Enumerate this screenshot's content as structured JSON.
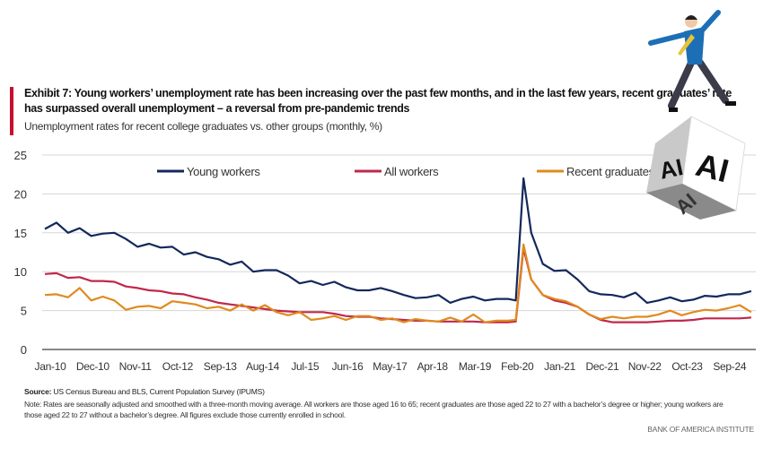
{
  "header": {
    "title": "Exhibit 7: Young workers’ unemployment rate has been increasing over the past few months, and in the last few years, recent graduates’ rate has surpassed overall unemployment – a reversal from pre-pandemic trends",
    "subtitle": "Unemployment rates for recent college graduates vs. other groups (monthly, %)"
  },
  "footer": {
    "source_label": "Source:",
    "source_text": " US Census Bureau and BLS, Current Population Survey (IPUMS)",
    "note": "Note: Rates are seasonally adjusted and smoothed with a three-month moving average. All workers are those aged 16 to 65; recent graduates are those aged 22 to 27 with a bachelor’s degree or higher; young workers are those aged 22 to 27 without a bachelor’s degree. All figures exclude those currently enrolled in school.",
    "brand": "BANK OF AMERICA INSTITUTE"
  },
  "illustration": {
    "cube_text": "AI"
  },
  "chart_data": {
    "type": "line",
    "title": "",
    "xlabel": "",
    "ylabel": "",
    "ylim": [
      0,
      25
    ],
    "yticks": [
      0,
      5,
      10,
      15,
      20,
      25
    ],
    "xticks": [
      "Jan-10",
      "Dec-10",
      "Nov-11",
      "Oct-12",
      "Sep-13",
      "Aug-14",
      "Jul-15",
      "Jun-16",
      "May-17",
      "Apr-18",
      "Mar-19",
      "Feb-20",
      "Jan-21",
      "Dec-21",
      "Nov-22",
      "Oct-23",
      "Sep-24"
    ],
    "grid": "horizontal",
    "legend": "top",
    "x": [
      "2010-01",
      "2010-04",
      "2010-07",
      "2010-10",
      "2011-01",
      "2011-04",
      "2011-07",
      "2011-10",
      "2012-01",
      "2012-04",
      "2012-07",
      "2012-10",
      "2013-01",
      "2013-04",
      "2013-07",
      "2013-10",
      "2014-01",
      "2014-04",
      "2014-07",
      "2014-10",
      "2015-01",
      "2015-04",
      "2015-07",
      "2015-10",
      "2016-01",
      "2016-04",
      "2016-07",
      "2016-10",
      "2017-01",
      "2017-04",
      "2017-07",
      "2017-10",
      "2018-01",
      "2018-04",
      "2018-07",
      "2018-10",
      "2019-01",
      "2019-04",
      "2019-07",
      "2019-10",
      "2020-01",
      "2020-03",
      "2020-05",
      "2020-07",
      "2020-10",
      "2021-01",
      "2021-04",
      "2021-07",
      "2021-10",
      "2022-01",
      "2022-04",
      "2022-07",
      "2022-10",
      "2023-01",
      "2023-04",
      "2023-07",
      "2023-10",
      "2024-01",
      "2024-04",
      "2024-07",
      "2024-10",
      "2025-01",
      "2025-04"
    ],
    "series": [
      {
        "name": "Young workers",
        "color": "#13285c",
        "values": [
          15.5,
          16.3,
          15.0,
          15.6,
          14.6,
          14.9,
          15.0,
          14.2,
          13.2,
          13.6,
          13.1,
          13.2,
          12.2,
          12.5,
          11.9,
          11.6,
          10.9,
          11.3,
          10.0,
          10.2,
          10.2,
          9.5,
          8.5,
          8.8,
          8.3,
          8.7,
          8.0,
          7.6,
          7.6,
          7.9,
          7.5,
          7.0,
          6.6,
          6.7,
          7.0,
          6.0,
          6.5,
          6.8,
          6.3,
          6.5,
          6.5,
          6.3,
          22.0,
          15.0,
          11.0,
          10.1,
          10.2,
          9.0,
          7.5,
          7.1,
          7.0,
          6.7,
          7.3,
          6.0,
          6.3,
          6.7,
          6.2,
          6.4,
          6.9,
          6.8,
          7.1,
          7.1,
          7.5
        ]
      },
      {
        "name": "All workers",
        "color": "#c0284a",
        "values": [
          9.7,
          9.8,
          9.2,
          9.3,
          8.8,
          8.8,
          8.7,
          8.1,
          7.9,
          7.6,
          7.5,
          7.2,
          7.1,
          6.7,
          6.4,
          6.0,
          5.8,
          5.6,
          5.4,
          5.2,
          5.0,
          4.9,
          4.8,
          4.8,
          4.8,
          4.6,
          4.3,
          4.2,
          4.2,
          4.0,
          3.9,
          3.8,
          3.7,
          3.7,
          3.6,
          3.6,
          3.6,
          3.6,
          3.5,
          3.5,
          3.5,
          3.6,
          13.0,
          9.0,
          7.0,
          6.3,
          6.0,
          5.5,
          4.5,
          3.8,
          3.5,
          3.5,
          3.5,
          3.5,
          3.6,
          3.7,
          3.7,
          3.8,
          4.0,
          4.0,
          4.0,
          4.0,
          4.1
        ]
      },
      {
        "name": "Recent graduates",
        "color": "#e08a1e",
        "values": [
          7.0,
          7.1,
          6.7,
          7.9,
          6.3,
          6.8,
          6.3,
          5.1,
          5.5,
          5.6,
          5.3,
          6.2,
          6.0,
          5.8,
          5.3,
          5.5,
          5.0,
          5.8,
          5.0,
          5.7,
          4.8,
          4.4,
          4.8,
          3.8,
          4.0,
          4.3,
          3.8,
          4.3,
          4.3,
          3.8,
          4.0,
          3.5,
          3.9,
          3.7,
          3.6,
          4.1,
          3.6,
          4.5,
          3.5,
          3.7,
          3.7,
          3.8,
          13.5,
          9.0,
          7.0,
          6.5,
          6.2,
          5.5,
          4.5,
          3.9,
          4.2,
          4.0,
          4.2,
          4.2,
          4.5,
          5.0,
          4.4,
          4.8,
          5.1,
          5.0,
          5.3,
          5.7,
          4.8
        ]
      }
    ]
  }
}
